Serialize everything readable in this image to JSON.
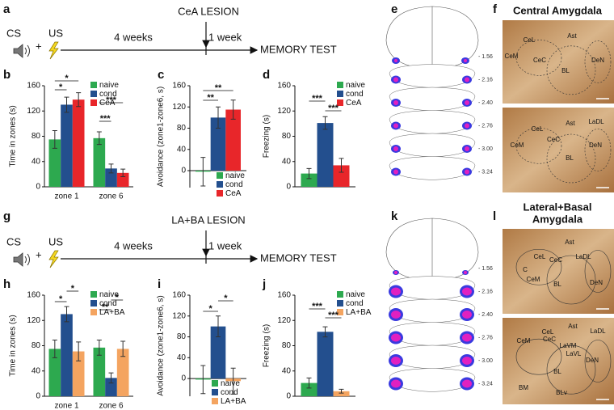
{
  "panel_letters": [
    "a",
    "b",
    "c",
    "d",
    "e",
    "f",
    "g",
    "h",
    "i",
    "j",
    "k",
    "l"
  ],
  "timelines": [
    {
      "cs": "CS",
      "plus": "+",
      "us": "US",
      "interval": "4 weeks",
      "lesion": "CeA LESION",
      "delay": "1 week",
      "test": "MEMORY TEST"
    },
    {
      "cs": "CS",
      "plus": "+",
      "us": "US",
      "interval": "4 weeks",
      "lesion": "LA+BA LESION",
      "delay": "1 week",
      "test": "MEMORY TEST"
    }
  ],
  "chart_data": [
    {
      "type": "bar",
      "ylabel": "Time in zones (s)",
      "categories": [
        "zone 1",
        "zone 6"
      ],
      "series": [
        {
          "name": "naive",
          "color": "#2da94f",
          "values": [
            75,
            77
          ],
          "errors": [
            14,
            10
          ]
        },
        {
          "name": "cond",
          "color": "#234f8e",
          "values": [
            130,
            29
          ],
          "errors": [
            12,
            7
          ]
        },
        {
          "name": "CeA",
          "color": "#e8262a",
          "values": [
            138,
            22
          ],
          "errors": [
            11,
            6
          ]
        }
      ],
      "ylim": [
        0,
        160
      ],
      "yticks": [
        0,
        40,
        80,
        120,
        160
      ],
      "annotations": [
        "*",
        "*",
        "***",
        "***"
      ]
    },
    {
      "type": "bar",
      "ylabel": "Avoidance (zone1-zone6, s)",
      "series": [
        {
          "name": "naive",
          "color": "#2da94f",
          "values": [
            -2
          ],
          "errors": [
            27
          ]
        },
        {
          "name": "cond",
          "color": "#234f8e",
          "values": [
            100
          ],
          "errors": [
            20
          ]
        },
        {
          "name": "CeA",
          "color": "#e8262a",
          "values": [
            115
          ],
          "errors": [
            18
          ]
        }
      ],
      "ylim": [
        -32,
        160
      ],
      "yticks": [
        0,
        40,
        80,
        120,
        160
      ],
      "annotations": [
        "**",
        "**"
      ]
    },
    {
      "type": "bar",
      "ylabel": "Freezing (s)",
      "series": [
        {
          "name": "naive",
          "color": "#2da94f",
          "values": [
            21
          ],
          "errors": [
            8
          ]
        },
        {
          "name": "cond",
          "color": "#234f8e",
          "values": [
            101
          ],
          "errors": [
            10
          ]
        },
        {
          "name": "CeA",
          "color": "#e8262a",
          "values": [
            34
          ],
          "errors": [
            11
          ]
        }
      ],
      "ylim": [
        0,
        160
      ],
      "yticks": [
        0,
        40,
        80,
        120,
        160
      ],
      "annotations": [
        "***",
        "***"
      ]
    },
    {
      "type": "bar",
      "ylabel": "Time in zones (s)",
      "categories": [
        "zone 1",
        "zone 6"
      ],
      "series": [
        {
          "name": "naive",
          "color": "#2da94f",
          "values": [
            75,
            77
          ],
          "errors": [
            14,
            12
          ]
        },
        {
          "name": "cond",
          "color": "#234f8e",
          "values": [
            130,
            29
          ],
          "errors": [
            12,
            8
          ]
        },
        {
          "name": "LA+BA",
          "color": "#f4a460",
          "values": [
            71,
            75
          ],
          "errors": [
            15,
            12
          ]
        }
      ],
      "ylim": [
        0,
        160
      ],
      "yticks": [
        0,
        40,
        80,
        120,
        160
      ],
      "annotations": [
        "*",
        "*",
        "*",
        "**"
      ]
    },
    {
      "type": "bar",
      "ylabel": "Avoidance (zone1-zone6, s)",
      "series": [
        {
          "name": "naive",
          "color": "#2da94f",
          "values": [
            -2
          ],
          "errors": [
            27
          ]
        },
        {
          "name": "cond",
          "color": "#234f8e",
          "values": [
            100
          ],
          "errors": [
            20
          ]
        },
        {
          "name": "LA+BA",
          "color": "#f4a460",
          "values": [
            -5
          ],
          "errors": [
            25
          ]
        }
      ],
      "ylim": [
        -34,
        160
      ],
      "yticks": [
        0,
        40,
        80,
        120,
        160
      ],
      "annotations": [
        "*",
        "*"
      ]
    },
    {
      "type": "bar",
      "ylabel": "Freezing (s)",
      "series": [
        {
          "name": "naive",
          "color": "#2da94f",
          "values": [
            21
          ],
          "errors": [
            8
          ]
        },
        {
          "name": "cond",
          "color": "#234f8e",
          "values": [
            102
          ],
          "errors": [
            8
          ]
        },
        {
          "name": "LA+BA",
          "color": "#f4a460",
          "values": [
            8
          ],
          "errors": [
            3
          ]
        }
      ],
      "ylim": [
        0,
        160
      ],
      "yticks": [
        0,
        40,
        80,
        120,
        160
      ],
      "annotations": [
        "***",
        "***"
      ]
    }
  ],
  "atlas": [
    {
      "levels": [
        "- 1.56",
        "- 2.16",
        "- 2.40",
        "- 2.76",
        "- 3.00",
        "- 3.24"
      ]
    },
    {
      "levels": [
        "- 1.56",
        "- 2.16",
        "- 2.40",
        "- 2.76",
        "- 3.00",
        "- 3.24"
      ]
    }
  ],
  "histology": [
    {
      "title": [
        "Central Amygdala"
      ],
      "images": [
        {
          "labels": [
            "CeL",
            "Ast",
            "CeM",
            "CeC",
            "BL",
            "DeN"
          ]
        },
        {
          "labels": [
            "CeL",
            "Ast",
            "LaDL",
            "CeM",
            "CeC",
            "BL",
            "DeN"
          ]
        }
      ]
    },
    {
      "title": [
        "Lateral+Basal",
        "Amygdala"
      ],
      "images": [
        {
          "labels": [
            "Ast",
            "CeL",
            "CeC",
            "LaDL",
            "C",
            "CeM",
            "BL",
            "DeN"
          ]
        },
        {
          "labels": [
            "CeL",
            "Ast",
            "LaDL",
            "CeM",
            "CeC",
            "LaVM",
            "LaVL",
            "DeN",
            "BL",
            "BM",
            "BLv"
          ]
        }
      ]
    }
  ]
}
